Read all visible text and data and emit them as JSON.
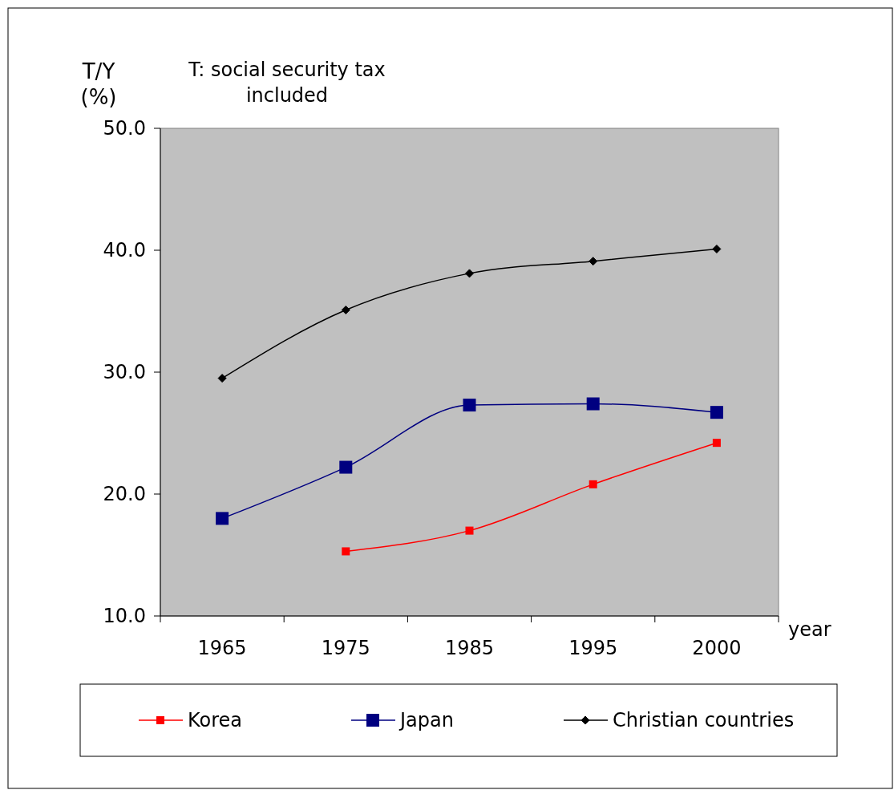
{
  "chart_data": {
    "type": "line",
    "xlabel": "year",
    "ylabel": "T/Y (%)",
    "annotations": [
      "T: social security tax included"
    ],
    "categories": [
      "1965",
      "1975",
      "1985",
      "1995",
      "2000"
    ],
    "series": [
      {
        "name": "Korea",
        "color": "#ff0000",
        "marker": "square",
        "values": [
          null,
          15.3,
          17.0,
          20.8,
          24.2
        ]
      },
      {
        "name": "Japan",
        "color": "#000080",
        "marker": "square",
        "values": [
          18.0,
          22.2,
          27.3,
          27.4,
          26.7
        ]
      },
      {
        "name": "Christian countries",
        "color": "#000000",
        "marker": "diamond",
        "values": [
          29.5,
          35.1,
          38.1,
          39.1,
          40.1
        ]
      }
    ],
    "ylim": [
      10,
      50
    ],
    "yticks": [
      {
        "value": 10,
        "label": "10.0"
      },
      {
        "value": 20,
        "label": "20.0"
      },
      {
        "value": 30,
        "label": "30.0"
      },
      {
        "value": 40,
        "label": "40.0"
      },
      {
        "value": 50,
        "label": "50.0"
      }
    ],
    "legend": "bottom",
    "grid": false
  }
}
